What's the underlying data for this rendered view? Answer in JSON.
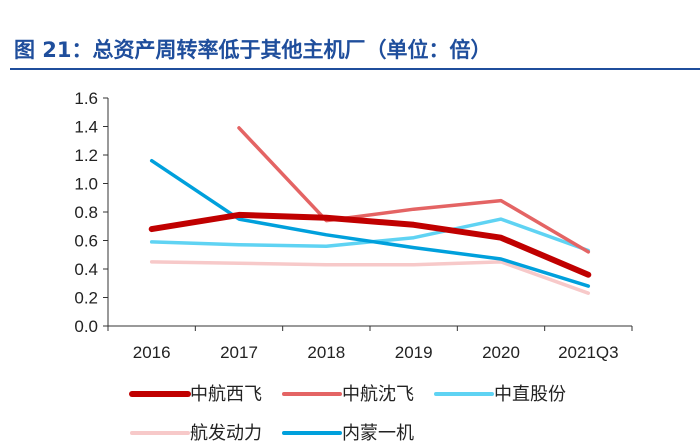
{
  "header": {
    "title": "图 21：总资产周转率低于其他主机厂（单位：倍）"
  },
  "chart_data": {
    "type": "line",
    "title": "图 21：总资产周转率低于其他主机厂（单位：倍）",
    "xlabel": "",
    "ylabel": "",
    "x": [
      "2016",
      "2017",
      "2018",
      "2019",
      "2020",
      "2021Q3"
    ],
    "ylim": [
      0,
      1.6
    ],
    "yticks": [
      "0.0",
      "0.2",
      "0.4",
      "0.6",
      "0.8",
      "1.0",
      "1.2",
      "1.4",
      "1.6"
    ],
    "grid": false,
    "legend_position": "bottom",
    "series": [
      {
        "name": "中航西飞",
        "color": "#c00000",
        "width": 6,
        "values": [
          0.68,
          0.78,
          0.76,
          0.71,
          0.62,
          0.36
        ]
      },
      {
        "name": "中航沈飞",
        "color": "#e46464",
        "width": 3.5,
        "values": [
          null,
          1.39,
          0.74,
          0.82,
          0.88,
          0.52
        ]
      },
      {
        "name": "中直股份",
        "color": "#5fd3f3",
        "width": 3.5,
        "values": [
          0.59,
          0.57,
          0.56,
          0.62,
          0.75,
          0.53
        ]
      },
      {
        "name": "航发动力",
        "color": "#f7c9c9",
        "width": 3.5,
        "values": [
          0.45,
          0.44,
          0.43,
          0.43,
          0.45,
          0.23
        ]
      },
      {
        "name": "内蒙一机",
        "color": "#00a0dc",
        "width": 3.5,
        "values": [
          1.16,
          0.75,
          0.64,
          0.55,
          0.47,
          0.28
        ]
      }
    ]
  }
}
